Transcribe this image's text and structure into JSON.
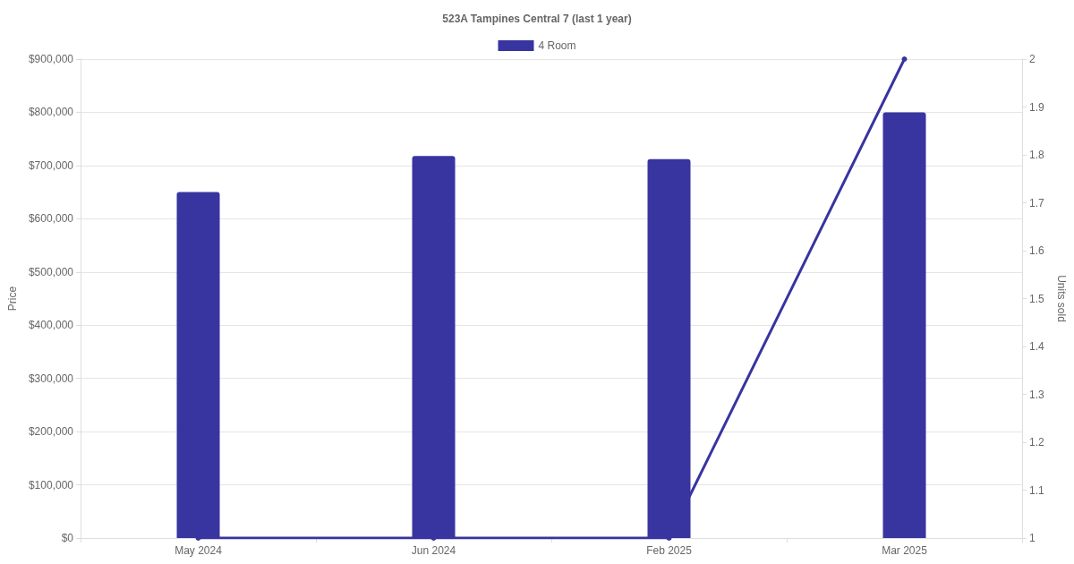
{
  "chart_data": {
    "type": "bar",
    "title": "523A Tampines Central 7 (last 1 year)",
    "ylabel": "Price",
    "y2label": "Units sold",
    "categories": [
      "May 2024",
      "Jun 2024",
      "Feb 2025",
      "Mar 2025"
    ],
    "series": [
      {
        "name": "4 Room",
        "color": "#3834a0",
        "values": [
          650000,
          718000,
          712000,
          800000
        ]
      },
      {
        "type": "line",
        "axis": "y2",
        "color": "#3834a0",
        "values": [
          1,
          1,
          1,
          2
        ],
        "marker": "circle",
        "line_style": "solid"
      }
    ],
    "ylim": [
      0,
      900000
    ],
    "yticks": [
      {
        "value": 0,
        "label": "$0"
      },
      {
        "value": 100000,
        "label": "$100,000"
      },
      {
        "value": 200000,
        "label": "$200,000"
      },
      {
        "value": 300000,
        "label": "$300,000"
      },
      {
        "value": 400000,
        "label": "$400,000"
      },
      {
        "value": 500000,
        "label": "$500,000"
      },
      {
        "value": 600000,
        "label": "$600,000"
      },
      {
        "value": 700000,
        "label": "$700,000"
      },
      {
        "value": 800000,
        "label": "$800,000"
      },
      {
        "value": 900000,
        "label": "$900,000"
      }
    ],
    "y2lim": [
      1,
      2
    ],
    "y2ticks": [
      1,
      1.1,
      1.2,
      1.3,
      1.4,
      1.5,
      1.6,
      1.7,
      1.8,
      1.9,
      2
    ],
    "grid": "y",
    "legend": "top"
  }
}
